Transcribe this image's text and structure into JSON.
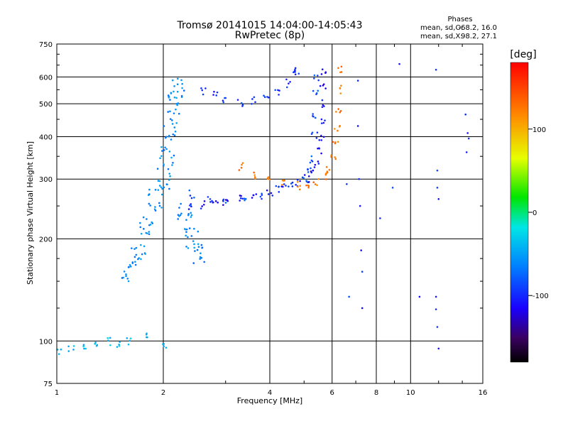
{
  "header": {
    "title": "Tromsø 20141015 14:04:00-14:05:43",
    "subtitle": "RwPretec (8p)",
    "phase_heading": "Phases",
    "phase_o_label": "mean, sd,O:",
    "phase_o_value": "-68.2, 16.0",
    "phase_x_label": "mean, sd,X:",
    "phase_x_value": "98.2, 27.1"
  },
  "colorbar": {
    "label": "[deg]",
    "ticks": [
      "100",
      "0",
      "-100"
    ],
    "tick_values": [
      100,
      0,
      -100
    ],
    "range": [
      -180,
      180
    ]
  },
  "chart_data": {
    "type": "scatter",
    "xlabel": "Frequency [MHz]",
    "ylabel": "Stationary phase Virtual Height [km]",
    "x_scale": "log",
    "y_scale": "log",
    "xlim": [
      1,
      16
    ],
    "ylim": [
      75,
      750
    ],
    "x_ticks": [
      1,
      2,
      4,
      6,
      8,
      10,
      16
    ],
    "x_tick_labels": [
      "1",
      "2",
      "4",
      "6",
      "8",
      "10",
      "16"
    ],
    "y_ticks": [
      75,
      100,
      200,
      300,
      400,
      500,
      600,
      750
    ],
    "y_tick_labels": [
      "75",
      "100",
      "200",
      "300",
      "400",
      "500",
      "600",
      "750"
    ],
    "grid": true,
    "color_by": "phase [deg]",
    "series": [
      {
        "trace": "o-mode lower trace",
        "points": [
          [
            2.4,
            250
          ],
          [
            2.6,
            252
          ],
          [
            2.8,
            255
          ],
          [
            3.0,
            258
          ],
          [
            3.3,
            262
          ],
          [
            3.6,
            268
          ],
          [
            4.0,
            275
          ],
          [
            4.4,
            283
          ],
          [
            4.8,
            292
          ],
          [
            5.1,
            300
          ],
          [
            5.3,
            310
          ],
          [
            5.45,
            330
          ],
          [
            5.55,
            360
          ],
          [
            5.6,
            400
          ],
          [
            5.62,
            450
          ],
          [
            5.64,
            500
          ],
          [
            5.65,
            560
          ],
          [
            5.66,
            620
          ]
        ],
        "phase": -110
      },
      {
        "trace": "o-mode upper trace",
        "points": [
          [
            2.6,
            545
          ],
          [
            2.8,
            528
          ],
          [
            3.0,
            512
          ],
          [
            3.3,
            505
          ],
          [
            3.6,
            512
          ],
          [
            3.9,
            525
          ],
          [
            4.2,
            545
          ],
          [
            4.5,
            575
          ],
          [
            4.7,
            610
          ],
          [
            4.8,
            630
          ]
        ],
        "phase": -95
      },
      {
        "trace": "o-mode inner trace",
        "points": [
          [
            2.4,
            270
          ],
          [
            2.7,
            260
          ],
          [
            3.0,
            256
          ],
          [
            3.4,
            260
          ],
          [
            3.8,
            268
          ],
          [
            4.2,
            278
          ],
          [
            4.6,
            290
          ],
          [
            5.0,
            300
          ],
          [
            5.2,
            320
          ],
          [
            5.3,
            345
          ],
          [
            5.35,
            400
          ],
          [
            5.37,
            460
          ],
          [
            5.38,
            540
          ],
          [
            5.4,
            600
          ]
        ],
        "phase": -85
      },
      {
        "trace": "x-mode trace",
        "points": [
          [
            3.3,
            325
          ],
          [
            3.6,
            310
          ],
          [
            4.0,
            298
          ],
          [
            4.4,
            290
          ],
          [
            4.8,
            287
          ],
          [
            5.1,
            290
          ],
          [
            5.4,
            296
          ],
          [
            5.7,
            305
          ],
          [
            5.9,
            320
          ],
          [
            6.05,
            345
          ],
          [
            6.15,
            380
          ],
          [
            6.2,
            420
          ],
          [
            6.25,
            480
          ],
          [
            6.3,
            550
          ],
          [
            6.33,
            630
          ]
        ],
        "phase": 125
      },
      {
        "trace": "spread F region",
        "points": [
          [
            1.6,
            160
          ],
          [
            1.7,
            180
          ],
          [
            1.8,
            220
          ],
          [
            1.9,
            260
          ],
          [
            2.0,
            300
          ],
          [
            2.05,
            350
          ],
          [
            2.1,
            420
          ],
          [
            2.15,
            500
          ],
          [
            2.2,
            560
          ],
          [
            2.3,
            240
          ],
          [
            2.4,
            200
          ],
          [
            2.5,
            180
          ]
        ],
        "phase": -60
      },
      {
        "trace": "low-frequency echoes",
        "points": [
          [
            1.02,
            94
          ],
          [
            1.1,
            96
          ],
          [
            1.2,
            95
          ],
          [
            1.3,
            98
          ],
          [
            1.4,
            100
          ],
          [
            1.5,
            97
          ],
          [
            1.6,
            100
          ],
          [
            1.8,
            103
          ],
          [
            2.0,
            98
          ]
        ],
        "phase": -40
      },
      {
        "trace": "isolated points",
        "points": [
          [
            7.1,
            585
          ],
          [
            7.1,
            430
          ],
          [
            7.15,
            300
          ],
          [
            7.2,
            250
          ],
          [
            7.25,
            185
          ],
          [
            7.3,
            160
          ],
          [
            7.3,
            125
          ],
          [
            6.6,
            290
          ],
          [
            6.7,
            135
          ],
          [
            8.2,
            230
          ],
          [
            8.9,
            283
          ],
          [
            9.3,
            655
          ],
          [
            11.8,
            630
          ],
          [
            11.9,
            318
          ],
          [
            11.9,
            283
          ],
          [
            12.0,
            262
          ],
          [
            11.8,
            135
          ],
          [
            11.8,
            124
          ],
          [
            11.9,
            110
          ],
          [
            12.0,
            95
          ],
          [
            14.3,
            465
          ],
          [
            14.5,
            410
          ],
          [
            14.6,
            395
          ],
          [
            14.4,
            360
          ],
          [
            10.6,
            135
          ]
        ],
        "phase": -100
      }
    ]
  }
}
